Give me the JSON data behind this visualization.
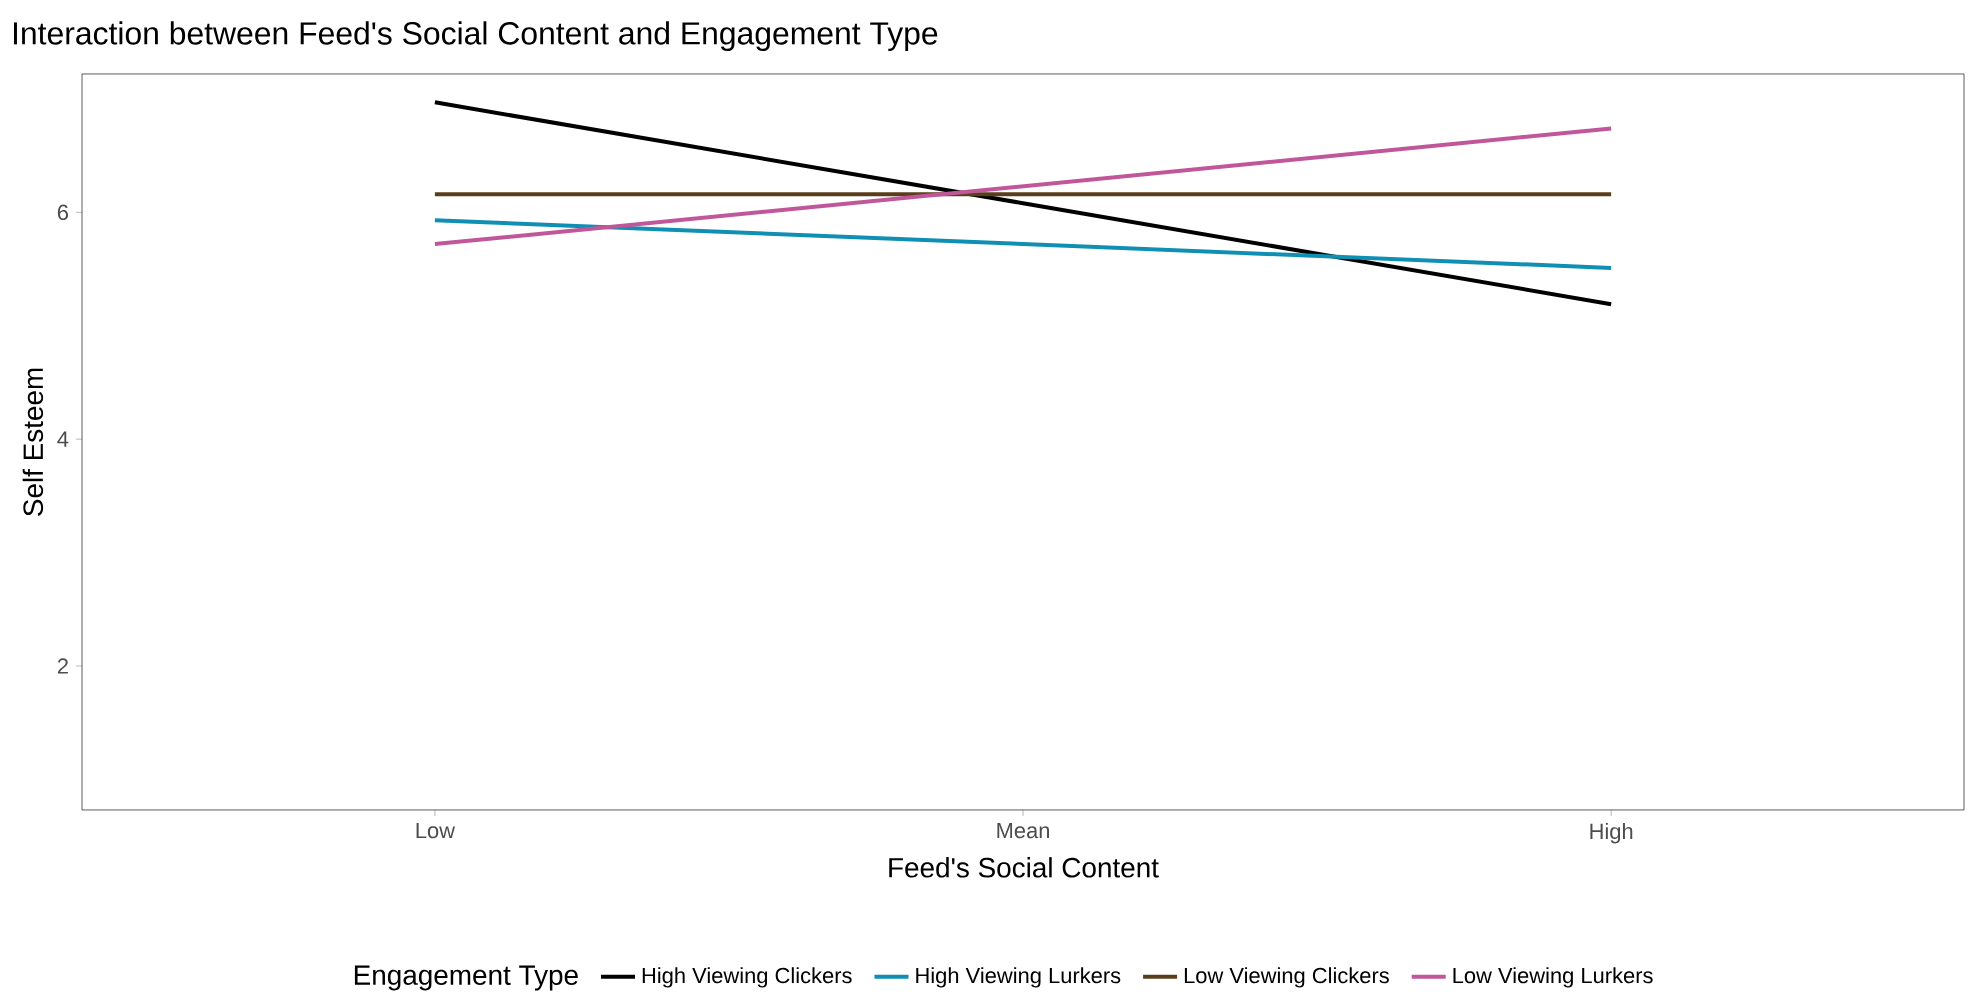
{
  "chart_data": {
    "type": "line",
    "title": "Interaction between Feed's Social Content and Engagement Type",
    "xlabel": "Feed's Social Content",
    "ylabel": "Self Esteem",
    "legend_title": "Engagement Type",
    "legend": "bottom",
    "grid": false,
    "marker": "none",
    "line_style": "solid",
    "categories": [
      "Low",
      "Mean",
      "High"
    ],
    "ylim": [
      0.73,
      7.22
    ],
    "yticks": [
      2,
      4,
      6
    ],
    "series": [
      {
        "name": "High Viewing Clickers",
        "color": "#000000",
        "values": [
          6.97,
          6.08,
          5.19
        ]
      },
      {
        "name": "High Viewing Lurkers",
        "color": "#0f8fb4",
        "values": [
          5.93,
          5.72,
          5.51
        ]
      },
      {
        "name": "Low Viewing Clickers",
        "color": "#5a3e1b",
        "values": [
          6.16,
          6.16,
          6.16
        ]
      },
      {
        "name": "Low Viewing Lurkers",
        "color": "#c0579a",
        "values": [
          5.72,
          6.23,
          6.74
        ]
      }
    ]
  }
}
